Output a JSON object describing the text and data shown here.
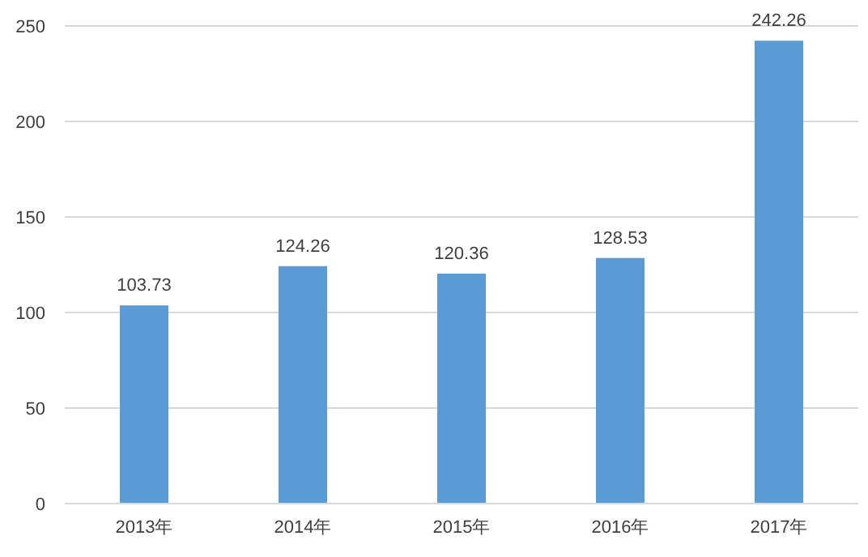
{
  "chart_data": {
    "type": "bar",
    "categories": [
      "2013年",
      "2014年",
      "2015年",
      "2016年",
      "2017年"
    ],
    "values": [
      103.73,
      124.26,
      120.36,
      128.53,
      242.26
    ],
    "color": "#5b9bd5",
    "ylim": [
      0,
      250
    ],
    "yticks": [
      0,
      50,
      100,
      150,
      200,
      250
    ],
    "grid": "y",
    "data_labels": true
  }
}
